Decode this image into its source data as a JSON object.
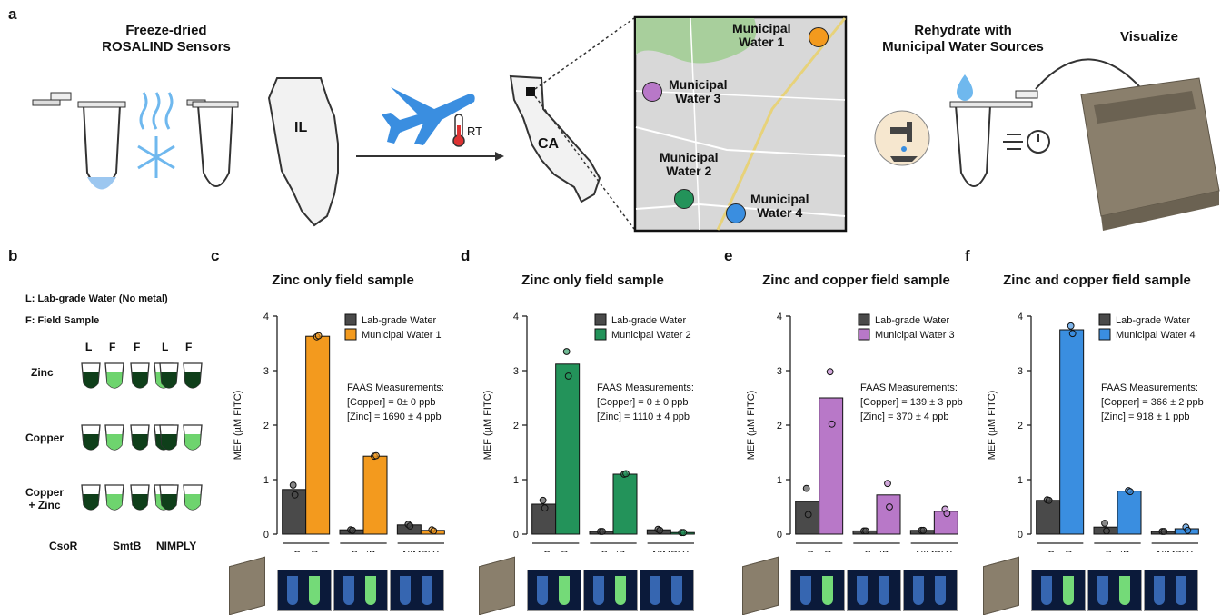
{
  "panel_a": {
    "label": "a",
    "sensors_title_line1": "Freeze-dried",
    "sensors_title_line2": "ROSALIND Sensors",
    "state_il": "IL",
    "state_ca": "CA",
    "rt_label": "RT",
    "map_sites": [
      {
        "line1": "Municipal",
        "line2": "Water 1",
        "color": "#f39a1e"
      },
      {
        "line1": "Municipal",
        "line2": "Water 3",
        "color": "#b878c8"
      },
      {
        "line1": "Municipal",
        "line2": "Water 2",
        "color": "#23935a"
      },
      {
        "line1": "Municipal",
        "line2": "Water 4",
        "color": "#3a8ee0"
      }
    ],
    "rehydrate_line1": "Rehydrate with",
    "rehydrate_line2": "Municipal Water Sources",
    "visualize": "Visualize"
  },
  "panel_b": {
    "label": "b",
    "legend_l": "L: Lab-grade Water (No metal)",
    "legend_f": "F: Field Sample",
    "col_l": "L",
    "col_f": "F",
    "rows": [
      "Zinc",
      "Copper",
      "Copper",
      "+ Zinc"
    ],
    "sensors": [
      "CsoR",
      "SmtB",
      "NIMPLY"
    ]
  },
  "colors": {
    "lab": "#4a4a4a",
    "grid_axis": "#222222"
  },
  "chart_data": [
    {
      "type": "bar",
      "label": "c",
      "title": "Zinc only field sample",
      "ylabel": "MEF (µM FITC)",
      "ylim": [
        0,
        4
      ],
      "yticks": [
        0,
        1,
        2,
        3,
        4
      ],
      "categories": [
        "CsoR",
        "SmtB",
        "NIMPLY"
      ],
      "series": [
        {
          "name": "Lab-grade Water",
          "color": "#4a4a4a",
          "values": [
            0.82,
            0.08,
            0.17
          ],
          "points": [
            [
              0.9,
              0.72
            ],
            [
              0.08,
              0.07
            ],
            [
              0.18,
              0.15
            ]
          ]
        },
        {
          "name": "Municipal Water 1",
          "color": "#f39a1e",
          "values": [
            3.63,
            1.43,
            0.07
          ],
          "points": [
            [
              3.62,
              3.64
            ],
            [
              1.43,
              1.44
            ],
            [
              0.08,
              0.06
            ]
          ]
        }
      ],
      "annotation": [
        "FAAS Measurements:",
        "[Copper] = 0± 0 ppb",
        "[Zinc] = 1690 ± 4 ppb"
      ]
    },
    {
      "type": "bar",
      "label": "d",
      "title": "Zinc only field sample",
      "ylabel": "MEF (µM FITC)",
      "ylim": [
        0,
        4
      ],
      "yticks": [
        0,
        1,
        2,
        3,
        4
      ],
      "categories": [
        "CsoR",
        "SmtB",
        "NIMPLY"
      ],
      "series": [
        {
          "name": "Lab-grade Water",
          "color": "#4a4a4a",
          "values": [
            0.55,
            0.05,
            0.08
          ],
          "points": [
            [
              0.62,
              0.48
            ],
            [
              0.05,
              0.05
            ],
            [
              0.09,
              0.07
            ]
          ]
        },
        {
          "name": "Municipal Water 2",
          "color": "#23935a",
          "values": [
            3.12,
            1.1,
            0.03
          ],
          "points": [
            [
              3.35,
              2.9
            ],
            [
              1.1,
              1.11
            ],
            [
              0.03,
              0.03
            ]
          ]
        }
      ],
      "annotation": [
        "FAAS Measurements:",
        "[Copper] = 0 ± 0 ppb",
        "[Zinc] = 1110 ± 4 ppb"
      ]
    },
    {
      "type": "bar",
      "label": "e",
      "title": "Zinc and copper field sample",
      "ylabel": "MEF (µM FITC)",
      "ylim": [
        0,
        4
      ],
      "yticks": [
        0,
        1,
        2,
        3,
        4
      ],
      "categories": [
        "CsoR",
        "SmtB",
        "NIMPLY"
      ],
      "series": [
        {
          "name": "Lab-grade Water",
          "color": "#4a4a4a",
          "values": [
            0.6,
            0.06,
            0.07
          ],
          "points": [
            [
              0.84,
              0.36
            ],
            [
              0.06,
              0.06
            ],
            [
              0.07,
              0.07
            ]
          ]
        },
        {
          "name": "Municipal Water 3",
          "color": "#b878c8",
          "values": [
            2.5,
            0.72,
            0.42
          ],
          "points": [
            [
              2.98,
              2.02
            ],
            [
              0.93,
              0.5
            ],
            [
              0.46,
              0.38
            ]
          ]
        }
      ],
      "annotation": [
        "FAAS Measurements:",
        "[Copper] = 139 ± 3 ppb",
        "[Zinc] = 370 ± 4 ppb"
      ]
    },
    {
      "type": "bar",
      "label": "f",
      "title": "Zinc and copper field sample",
      "ylabel": "MEF (µM FITC)",
      "ylim": [
        0,
        4
      ],
      "yticks": [
        0,
        1,
        2,
        3,
        4
      ],
      "categories": [
        "CsoR",
        "SmtB",
        "NIMPLY"
      ],
      "series": [
        {
          "name": "Lab-grade Water",
          "color": "#4a4a4a",
          "values": [
            0.62,
            0.13,
            0.05
          ],
          "points": [
            [
              0.63,
              0.62
            ],
            [
              0.2,
              0.06
            ],
            [
              0.05,
              0.05
            ]
          ]
        },
        {
          "name": "Municipal Water 4",
          "color": "#3a8ee0",
          "values": [
            3.75,
            0.79,
            0.1
          ],
          "points": [
            [
              3.82,
              3.68
            ],
            [
              0.8,
              0.78
            ],
            [
              0.13,
              0.07
            ]
          ]
        }
      ],
      "annotation": [
        "FAAS Measurements:",
        "[Copper] = 366 ± 2 ppb",
        "[Zinc] = 918 ± 1 ppb"
      ]
    }
  ]
}
